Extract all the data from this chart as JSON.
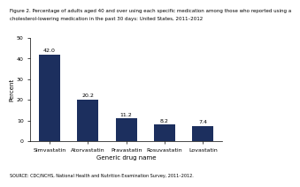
{
  "categories": [
    "Simvastatin",
    "Atorvastatin",
    "Pravastatin",
    "Rosuvastatin",
    "Lovastatin"
  ],
  "values": [
    42.0,
    20.2,
    11.2,
    8.2,
    7.4
  ],
  "bar_color": "#1c2f5e",
  "title_line1": "Figure 2. Percentage of adults aged 40 and over using each specific medication among those who reported using a",
  "title_line2": "cholesterol-lowering medication in the past 30 days: United States, 2011–2012",
  "xlabel": "Generic drug name",
  "ylabel": "Percent",
  "ylim": [
    0,
    50
  ],
  "yticks": [
    0,
    10,
    20,
    30,
    40,
    50
  ],
  "footnote": "SOURCE: CDC/NCHS, National Health and Nutrition Examination Survey, 2011–2012.",
  "title_fontsize": 4.0,
  "label_fontsize": 5.0,
  "tick_fontsize": 4.5,
  "value_fontsize": 4.5,
  "footnote_fontsize": 3.5,
  "bar_width": 0.55
}
